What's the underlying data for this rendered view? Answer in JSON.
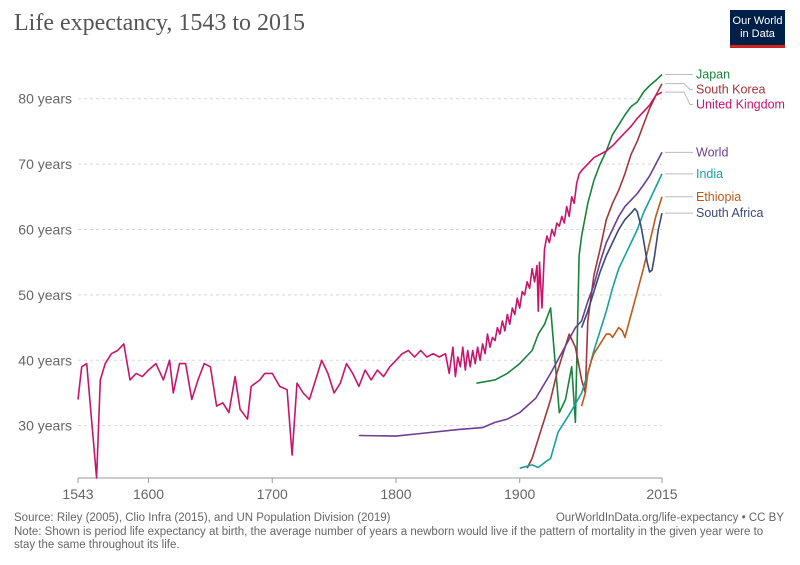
{
  "title": "Life expectancy, 1543 to 2015",
  "logo": {
    "line1": "Our World",
    "line2": "in Data"
  },
  "footer": {
    "source": "Source: Riley (2005), Clio Infra (2015), and UN Population Division (2019)",
    "link": "OurWorldInData.org/life-expectancy • CC BY",
    "note": "Note: Shown is period life expectancy at birth, the average number of years a newborn would live if the pattern of mortality in the given year were to stay the same throughout its life."
  },
  "chart_data": {
    "type": "line",
    "title": "Life expectancy, 1543 to 2015",
    "xlabel": "",
    "ylabel": "",
    "xlim": [
      1543,
      2015
    ],
    "ylim": [
      22,
      85
    ],
    "x_ticks": [
      1543,
      1600,
      1700,
      1800,
      1900,
      2015
    ],
    "y_ticks": [
      {
        "value": 30,
        "label": "30 years"
      },
      {
        "value": 40,
        "label": "40 years"
      },
      {
        "value": 50,
        "label": "50 years"
      },
      {
        "value": 60,
        "label": "60 years"
      },
      {
        "value": 70,
        "label": "70 years"
      },
      {
        "value": 80,
        "label": "80 years"
      }
    ],
    "grid": true,
    "legend_placement": "right end labels",
    "series": [
      {
        "name": "Japan",
        "color": "#19833c",
        "points": [
          [
            1865,
            36.5
          ],
          [
            1880,
            37
          ],
          [
            1890,
            38
          ],
          [
            1900,
            39.5
          ],
          [
            1910,
            41.5
          ],
          [
            1915,
            44
          ],
          [
            1920,
            45.5
          ],
          [
            1925,
            48
          ],
          [
            1932,
            32
          ],
          [
            1937,
            34
          ],
          [
            1942,
            39
          ],
          [
            1945,
            30.5
          ],
          [
            1948,
            56
          ],
          [
            1950,
            59
          ],
          [
            1955,
            64
          ],
          [
            1960,
            67.5
          ],
          [
            1965,
            70
          ],
          [
            1970,
            72
          ],
          [
            1975,
            74.5
          ],
          [
            1980,
            76
          ],
          [
            1985,
            77.5
          ],
          [
            1990,
            78.8
          ],
          [
            1995,
            79.5
          ],
          [
            2000,
            81
          ],
          [
            2005,
            82
          ],
          [
            2010,
            82.8
          ],
          [
            2015,
            83.7
          ]
        ]
      },
      {
        "name": "South Korea",
        "color": "#a2363b",
        "points": [
          [
            1906,
            23.5
          ],
          [
            1910,
            25
          ],
          [
            1915,
            28
          ],
          [
            1920,
            31
          ],
          [
            1925,
            34
          ],
          [
            1930,
            38
          ],
          [
            1935,
            41
          ],
          [
            1940,
            44
          ],
          [
            1945,
            42
          ],
          [
            1950,
            37
          ],
          [
            1953,
            35
          ],
          [
            1955,
            46
          ],
          [
            1960,
            53
          ],
          [
            1965,
            57
          ],
          [
            1970,
            61.5
          ],
          [
            1975,
            64
          ],
          [
            1980,
            66
          ],
          [
            1985,
            68.5
          ],
          [
            1990,
            71.5
          ],
          [
            1995,
            73.5
          ],
          [
            2000,
            76
          ],
          [
            2005,
            78.5
          ],
          [
            2010,
            80.5
          ],
          [
            2015,
            82.3
          ]
        ]
      },
      {
        "name": "United Kingdom",
        "color": "#c8156c",
        "points": [
          [
            1543,
            34
          ],
          [
            1546,
            39
          ],
          [
            1550,
            39.5
          ],
          [
            1558,
            22
          ],
          [
            1561,
            37
          ],
          [
            1565,
            39.5
          ],
          [
            1570,
            41
          ],
          [
            1575,
            41.5
          ],
          [
            1580,
            42.5
          ],
          [
            1585,
            37
          ],
          [
            1590,
            38
          ],
          [
            1595,
            37.5
          ],
          [
            1600,
            38.5
          ],
          [
            1606,
            39.5
          ],
          [
            1612,
            37
          ],
          [
            1617,
            40
          ],
          [
            1620,
            35
          ],
          [
            1625,
            39.5
          ],
          [
            1630,
            39.5
          ],
          [
            1635,
            34
          ],
          [
            1640,
            37
          ],
          [
            1645,
            39.5
          ],
          [
            1650,
            39
          ],
          [
            1655,
            33
          ],
          [
            1660,
            33.5
          ],
          [
            1665,
            32
          ],
          [
            1670,
            37.5
          ],
          [
            1674,
            32.5
          ],
          [
            1680,
            31
          ],
          [
            1683,
            36
          ],
          [
            1690,
            37
          ],
          [
            1694,
            38
          ],
          [
            1700,
            38
          ],
          [
            1706,
            36
          ],
          [
            1712,
            35.5
          ],
          [
            1716,
            25.5
          ],
          [
            1720,
            36.5
          ],
          [
            1725,
            35
          ],
          [
            1730,
            34
          ],
          [
            1735,
            37
          ],
          [
            1740,
            40
          ],
          [
            1745,
            38
          ],
          [
            1750,
            35
          ],
          [
            1755,
            36.5
          ],
          [
            1760,
            39.5
          ],
          [
            1765,
            38
          ],
          [
            1770,
            36
          ],
          [
            1775,
            38.5
          ],
          [
            1780,
            37
          ],
          [
            1785,
            38.5
          ],
          [
            1790,
            37.5
          ],
          [
            1795,
            39
          ],
          [
            1800,
            40
          ],
          [
            1805,
            41
          ],
          [
            1810,
            41.5
          ],
          [
            1815,
            40.5
          ],
          [
            1820,
            41.5
          ],
          [
            1825,
            40.5
          ],
          [
            1830,
            41
          ],
          [
            1835,
            40.5
          ],
          [
            1840,
            41
          ],
          [
            1843,
            38
          ],
          [
            1846,
            42
          ],
          [
            1848,
            37.5
          ],
          [
            1850,
            40.5
          ],
          [
            1852,
            39
          ],
          [
            1854,
            42
          ],
          [
            1856,
            38.5
          ],
          [
            1858,
            41.5
          ],
          [
            1860,
            39
          ],
          [
            1862,
            41.5
          ],
          [
            1864,
            39.5
          ],
          [
            1866,
            42
          ],
          [
            1868,
            40
          ],
          [
            1870,
            42.5
          ],
          [
            1872,
            41
          ],
          [
            1874,
            44
          ],
          [
            1876,
            42
          ],
          [
            1878,
            43.5
          ],
          [
            1880,
            43
          ],
          [
            1882,
            45
          ],
          [
            1884,
            44
          ],
          [
            1886,
            46
          ],
          [
            1888,
            44.5
          ],
          [
            1890,
            47
          ],
          [
            1892,
            45.5
          ],
          [
            1894,
            48
          ],
          [
            1896,
            47
          ],
          [
            1898,
            49.5
          ],
          [
            1900,
            48
          ],
          [
            1902,
            50.5
          ],
          [
            1904,
            50
          ],
          [
            1906,
            52
          ],
          [
            1908,
            51
          ],
          [
            1910,
            54
          ],
          [
            1912,
            52
          ],
          [
            1914,
            54.5
          ],
          [
            1915,
            47.5
          ],
          [
            1916,
            55
          ],
          [
            1918,
            48
          ],
          [
            1920,
            57
          ],
          [
            1922,
            59
          ],
          [
            1924,
            58
          ],
          [
            1926,
            60
          ],
          [
            1928,
            59
          ],
          [
            1930,
            61
          ],
          [
            1932,
            60.5
          ],
          [
            1934,
            62
          ],
          [
            1936,
            61
          ],
          [
            1938,
            63.5
          ],
          [
            1940,
            62
          ],
          [
            1942,
            65
          ],
          [
            1944,
            64
          ],
          [
            1946,
            67
          ],
          [
            1948,
            68.5
          ],
          [
            1950,
            69
          ],
          [
            1955,
            70
          ],
          [
            1960,
            71
          ],
          [
            1965,
            71.5
          ],
          [
            1970,
            72
          ],
          [
            1975,
            72.8
          ],
          [
            1980,
            73.8
          ],
          [
            1985,
            74.8
          ],
          [
            1990,
            75.8
          ],
          [
            1995,
            77
          ],
          [
            2000,
            78
          ],
          [
            2005,
            79
          ],
          [
            2010,
            80.5
          ],
          [
            2015,
            81
          ]
        ]
      },
      {
        "name": "World",
        "color": "#6d3e91",
        "points": [
          [
            1770,
            28.5
          ],
          [
            1800,
            28.4
          ],
          [
            1820,
            28.8
          ],
          [
            1850,
            29.4
          ],
          [
            1870,
            29.7
          ],
          [
            1880,
            30.5
          ],
          [
            1890,
            31
          ],
          [
            1900,
            32
          ],
          [
            1913,
            34.2
          ],
          [
            1925,
            38
          ],
          [
            1935,
            41.5
          ],
          [
            1945,
            45
          ],
          [
            1950,
            46
          ],
          [
            1955,
            49
          ],
          [
            1960,
            51.5
          ],
          [
            1965,
            55
          ],
          [
            1970,
            58
          ],
          [
            1975,
            60
          ],
          [
            1980,
            62
          ],
          [
            1985,
            63.5
          ],
          [
            1990,
            64.5
          ],
          [
            1995,
            65.5
          ],
          [
            2000,
            66.8
          ],
          [
            2005,
            68.2
          ],
          [
            2010,
            70
          ],
          [
            2015,
            71.8
          ]
        ]
      },
      {
        "name": "India",
        "color": "#18a0a0",
        "points": [
          [
            1900,
            23.5
          ],
          [
            1910,
            24
          ],
          [
            1915,
            23.6
          ],
          [
            1921,
            24.5
          ],
          [
            1925,
            25
          ],
          [
            1931,
            29
          ],
          [
            1941,
            32
          ],
          [
            1950,
            35
          ],
          [
            1955,
            38
          ],
          [
            1960,
            41.5
          ],
          [
            1965,
            44.5
          ],
          [
            1970,
            47.5
          ],
          [
            1975,
            51
          ],
          [
            1980,
            54
          ],
          [
            1985,
            56
          ],
          [
            1990,
            58
          ],
          [
            1995,
            60
          ],
          [
            2000,
            62.5
          ],
          [
            2005,
            64.5
          ],
          [
            2010,
            66.5
          ],
          [
            2015,
            68.5
          ]
        ]
      },
      {
        "name": "Ethiopia",
        "color": "#c05917",
        "points": [
          [
            1950,
            33
          ],
          [
            1953,
            35
          ],
          [
            1955,
            38
          ],
          [
            1958,
            40
          ],
          [
            1960,
            41
          ],
          [
            1965,
            42.5
          ],
          [
            1970,
            44
          ],
          [
            1973,
            44
          ],
          [
            1975,
            43.5
          ],
          [
            1980,
            45
          ],
          [
            1983,
            44.5
          ],
          [
            1985,
            43.5
          ],
          [
            1990,
            47
          ],
          [
            1995,
            50.5
          ],
          [
            2000,
            54
          ],
          [
            2005,
            58
          ],
          [
            2010,
            62
          ],
          [
            2015,
            65
          ]
        ]
      },
      {
        "name": "South Africa",
        "color": "#3b4a75",
        "points": [
          [
            1950,
            45
          ],
          [
            1955,
            47.5
          ],
          [
            1960,
            50.5
          ],
          [
            1965,
            53.5
          ],
          [
            1970,
            56
          ],
          [
            1975,
            58
          ],
          [
            1980,
            60
          ],
          [
            1985,
            61.5
          ],
          [
            1990,
            62.5
          ],
          [
            1993,
            63.2
          ],
          [
            1995,
            62.7
          ],
          [
            1998,
            60.5
          ],
          [
            2000,
            58.5
          ],
          [
            2003,
            55
          ],
          [
            2005,
            53.5
          ],
          [
            2007,
            53.8
          ],
          [
            2009,
            56
          ],
          [
            2012,
            60
          ],
          [
            2015,
            62.5
          ]
        ]
      }
    ]
  }
}
